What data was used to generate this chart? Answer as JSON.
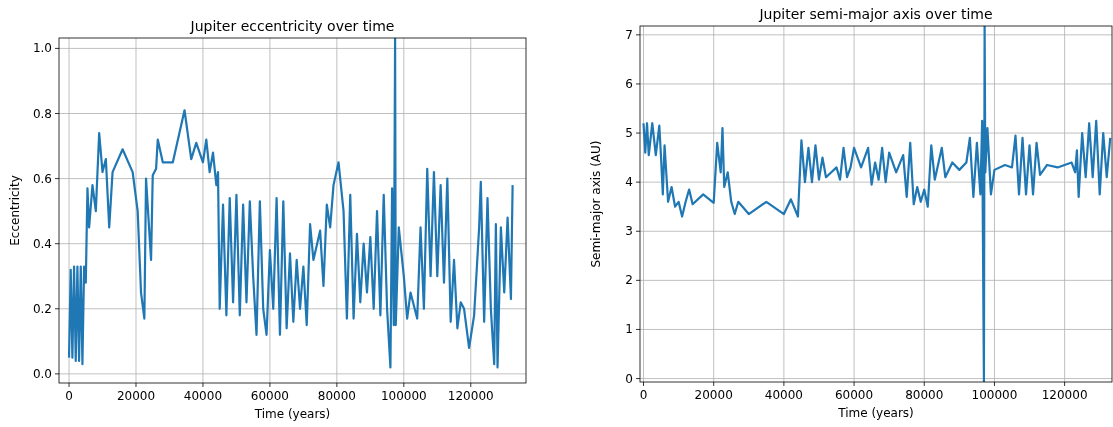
{
  "chart_data": [
    {
      "type": "line",
      "title": "Jupiter eccentricity over time",
      "xlabel": "Time (years)",
      "ylabel": "Eccentricity",
      "xlim": [
        -3000,
        136500
      ],
      "ylim": [
        -0.028,
        1.032
      ],
      "xticks": [
        0,
        20000,
        40000,
        60000,
        80000,
        100000,
        120000
      ],
      "yticks": [
        {
          "value": 0,
          "label": "0.0"
        },
        {
          "value": 0.2,
          "label": "0.2"
        },
        {
          "value": 0.4,
          "label": "0.4"
        },
        {
          "value": 0.6,
          "label": "0.6"
        },
        {
          "value": 0.8,
          "label": "0.8"
        },
        {
          "value": 1,
          "label": "1.0"
        }
      ],
      "grid": true,
      "x": [
        0,
        500,
        1000,
        1500,
        2000,
        2500,
        3000,
        3500,
        4000,
        4500,
        5000,
        5500,
        6000,
        7000,
        8000,
        9000,
        10000,
        11000,
        12000,
        13000,
        16000,
        19000,
        20500,
        21500,
        22500,
        23000,
        24500,
        25000,
        26000,
        26500,
        28000,
        31000,
        34500,
        36500,
        38000,
        40000,
        41000,
        42000,
        43000,
        44000,
        44500,
        45000,
        46000,
        47000,
        48000,
        49000,
        50000,
        51000,
        52000,
        53000,
        54000,
        55000,
        56000,
        57000,
        58000,
        59000,
        60000,
        61000,
        62000,
        63000,
        64000,
        65000,
        66000,
        67000,
        68000,
        69000,
        70000,
        71000,
        72000,
        73000,
        75000,
        76000,
        77000,
        78000,
        79000,
        80500,
        82000,
        83000,
        84000,
        85000,
        86000,
        87000,
        88000,
        89000,
        90000,
        91000,
        92000,
        93000,
        94000,
        95000,
        96000,
        96500,
        97000,
        97400,
        97600,
        98500,
        100000,
        101000,
        102000,
        104000,
        105000,
        106000,
        107000,
        108000,
        109000,
        110000,
        111000,
        112000,
        113000,
        114000,
        115000,
        116000,
        117000,
        118000,
        119500,
        121000,
        122500,
        123000,
        124000,
        125000,
        126000,
        127000,
        127500,
        128000,
        129000,
        130000,
        131000,
        132000,
        132500
      ],
      "series": [
        {
          "color": "#1f77b4",
          "values": [
            0.05,
            0.32,
            0.05,
            0.33,
            0.04,
            0.33,
            0.04,
            0.33,
            0.03,
            0.33,
            0.28,
            0.57,
            0.45,
            0.58,
            0.5,
            0.74,
            0.62,
            0.66,
            0.45,
            0.62,
            0.69,
            0.62,
            0.5,
            0.25,
            0.17,
            0.6,
            0.35,
            0.61,
            0.63,
            0.72,
            0.65,
            0.65,
            0.81,
            0.66,
            0.71,
            0.65,
            0.72,
            0.62,
            0.68,
            0.58,
            0.62,
            0.2,
            0.52,
            0.18,
            0.54,
            0.22,
            0.55,
            0.18,
            0.52,
            0.22,
            0.53,
            0.3,
            0.12,
            0.53,
            0.2,
            0.12,
            0.38,
            0.2,
            0.54,
            0.12,
            0.53,
            0.14,
            0.37,
            0.16,
            0.35,
            0.2,
            0.33,
            0.15,
            0.46,
            0.35,
            0.44,
            0.27,
            0.52,
            0.45,
            0.58,
            0.65,
            0.5,
            0.17,
            0.55,
            0.17,
            0.43,
            0.22,
            0.4,
            0.25,
            0.42,
            0.2,
            0.5,
            0.18,
            0.55,
            0.2,
            0.02,
            0.57,
            0.15,
            1.03,
            0.15,
            0.45,
            0.3,
            0.17,
            0.25,
            0.17,
            0.45,
            0.2,
            0.63,
            0.3,
            0.62,
            0.3,
            0.58,
            0.28,
            0.6,
            0.16,
            0.35,
            0.14,
            0.22,
            0.2,
            0.08,
            0.18,
            0.45,
            0.59,
            0.16,
            0.54,
            0.2,
            0.03,
            0.46,
            0.02,
            0.45,
            0.25,
            0.48,
            0.23,
            0.58
          ]
        }
      ]
    },
    {
      "type": "line",
      "title": "Jupiter semi-major axis over time",
      "xlabel": "Time (years)",
      "ylabel": "Semi-major axis (AU)",
      "xlim": [
        -1000,
        133500
      ],
      "ylim": [
        -0.07,
        7.18
      ],
      "xticks": [
        0,
        20000,
        40000,
        60000,
        80000,
        100000,
        120000
      ],
      "yticks": [
        0,
        1,
        2,
        3,
        4,
        5,
        6,
        7
      ],
      "grid": true,
      "x": [
        0,
        500,
        1000,
        1500,
        2500,
        3500,
        4500,
        5000,
        5500,
        6000,
        7000,
        8000,
        9000,
        10000,
        11000,
        12000,
        13000,
        14000,
        17000,
        20000,
        21000,
        22000,
        22500,
        23000,
        24000,
        25000,
        26000,
        27000,
        30000,
        35000,
        40000,
        42000,
        44000,
        45000,
        46000,
        47000,
        48000,
        49000,
        50000,
        51000,
        52000,
        55000,
        56000,
        57000,
        58000,
        59000,
        60000,
        62000,
        64000,
        65000,
        66000,
        67000,
        68000,
        69000,
        70000,
        72000,
        74000,
        75000,
        76000,
        77000,
        78000,
        79000,
        80000,
        81000,
        82000,
        83000,
        85000,
        86000,
        88000,
        90000,
        92000,
        93000,
        94000,
        95000,
        96000,
        96500,
        97000,
        97200,
        97400,
        98000,
        99000,
        100000,
        103000,
        105000,
        106000,
        107000,
        108000,
        109000,
        110000,
        111000,
        112000,
        113000,
        115000,
        118000,
        122000,
        123000,
        123500,
        124000,
        125000,
        126000,
        127000,
        128000,
        129000,
        130000,
        131000,
        132000,
        133000
      ],
      "series": [
        {
          "color": "#1f77b4",
          "values": [
            5.2,
            4.6,
            5.2,
            4.55,
            5.2,
            4.55,
            5.15,
            4.5,
            3.75,
            4.75,
            3.6,
            3.9,
            3.5,
            3.6,
            3.3,
            3.6,
            3.85,
            3.55,
            3.75,
            3.58,
            4.8,
            4.2,
            5.1,
            3.9,
            4.2,
            3.6,
            3.35,
            3.6,
            3.35,
            3.6,
            3.35,
            3.65,
            3.3,
            4.85,
            4.0,
            4.7,
            4.0,
            4.75,
            4.05,
            4.5,
            4.1,
            4.3,
            4.05,
            4.7,
            4.1,
            4.3,
            4.7,
            4.3,
            4.7,
            3.95,
            4.4,
            4.05,
            4.7,
            4.0,
            4.6,
            4.2,
            4.55,
            3.7,
            4.8,
            3.55,
            3.9,
            3.6,
            3.85,
            3.5,
            4.75,
            4.05,
            4.7,
            4.1,
            4.4,
            4.25,
            4.4,
            4.9,
            3.7,
            4.8,
            3.75,
            5.25,
            -0.07,
            7.18,
            4.2,
            5.1,
            3.75,
            4.25,
            4.35,
            4.3,
            4.95,
            3.75,
            4.9,
            3.75,
            4.75,
            3.75,
            4.8,
            4.15,
            4.35,
            4.3,
            4.4,
            4.2,
            4.65,
            3.7,
            5.0,
            4.1,
            5.2,
            4.1,
            5.25,
            3.75,
            5.0,
            4.1,
            4.9
          ]
        }
      ]
    }
  ]
}
